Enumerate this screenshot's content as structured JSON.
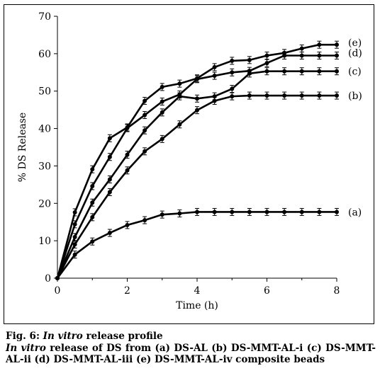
{
  "chart_data": {
    "type": "line",
    "xlabel": "Time (h)",
    "ylabel": "% DS Release",
    "xlim": [
      0,
      8
    ],
    "ylim": [
      0,
      70
    ],
    "xticks": [
      "0",
      "2",
      "4",
      "6",
      "8"
    ],
    "yticks": [
      "0",
      "10",
      "20",
      "30",
      "40",
      "50",
      "60",
      "70"
    ],
    "grid": false,
    "x": [
      0,
      0.5,
      1,
      1.5,
      2,
      2.5,
      3,
      3.5,
      4,
      4.5,
      5,
      5.5,
      6,
      6.5,
      7,
      7.5,
      8
    ],
    "series": [
      {
        "name": "(a)",
        "values": [
          0,
          6.3,
          9.8,
          12.1,
          14.2,
          15.5,
          17.0,
          17.3,
          17.7,
          17.7,
          17.7,
          17.7,
          17.7,
          17.7,
          17.7,
          17.7,
          17.7
        ]
      },
      {
        "name": "(b)",
        "values": [
          0,
          9.0,
          16.3,
          23.0,
          28.8,
          33.9,
          37.2,
          41.1,
          44.9,
          47.4,
          48.6,
          48.8,
          48.8,
          48.8,
          48.8,
          48.8,
          48.8
        ]
      },
      {
        "name": "(c)",
        "values": [
          0,
          11.0,
          20.2,
          26.4,
          33.0,
          39.5,
          44.3,
          48.6,
          48.0,
          48.6,
          50.6,
          54.7,
          55.3,
          55.3,
          55.3,
          55.3,
          55.3
        ]
      },
      {
        "name": "(d)",
        "values": [
          0,
          14.4,
          24.6,
          32.4,
          40.1,
          43.6,
          47.2,
          49.1,
          53.2,
          54.1,
          55.0,
          55.4,
          57.5,
          59.5,
          59.5,
          59.5,
          59.5
        ]
      },
      {
        "name": "(e)",
        "values": [
          0,
          17.6,
          29.1,
          37.4,
          40.3,
          47.4,
          51.1,
          52.0,
          53.4,
          56.4,
          58.1,
          58.3,
          59.5,
          60.2,
          61.4,
          62.4,
          62.4
        ]
      }
    ]
  },
  "caption": {
    "fig_label": "Fig. 6: ",
    "title_italic": "In vitro",
    "title_rest": " release profile",
    "body_italic": "In vitro",
    "body_rest": " release of DS from (a) DS-AL (b) DS-MMT-AL-i (c) DS-MMT-AL-ii (d) DS-MMT-AL-iii (e) DS-MMT-AL-iv composite beads"
  }
}
